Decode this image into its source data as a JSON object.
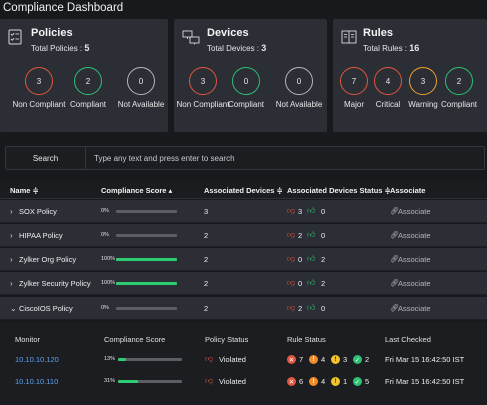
{
  "page_title": "Compliance Dashboard",
  "cards": {
    "policies": {
      "title": "Policies",
      "subtitle": "Total Policies :",
      "total": "5",
      "stats": [
        {
          "value": "3",
          "label": "Non Compliant"
        },
        {
          "value": "2",
          "label": "Compliant"
        },
        {
          "value": "0",
          "label": "Not Available"
        }
      ]
    },
    "devices": {
      "title": "Devices",
      "subtitle": "Total Devices :",
      "total": "3",
      "stats": [
        {
          "value": "3",
          "label": "Non Compliant"
        },
        {
          "value": "0",
          "label": "Compliant"
        },
        {
          "value": "0",
          "label": "Not Available"
        }
      ]
    },
    "rules": {
      "title": "Rules",
      "subtitle": "Total Rules :",
      "total": "16",
      "stats": [
        {
          "value": "7",
          "label": "Major"
        },
        {
          "value": "4",
          "label": "Critical"
        },
        {
          "value": "3",
          "label": "Warning"
        },
        {
          "value": "2",
          "label": "Compliant"
        }
      ]
    }
  },
  "search": {
    "button_label": "Search",
    "placeholder": "Type any text and press enter to search"
  },
  "table": {
    "headers": {
      "name": "Name ≑",
      "compliance_score": "Compliance Score ▴",
      "associated_devices": "Associated Devices ≑",
      "associated_devices_status": "Associated Devices Status ≑",
      "associate": "Associate"
    },
    "rows": [
      {
        "chevron": "›",
        "name": "SOX Policy",
        "score": "0%",
        "score_value": 0,
        "devices": "3",
        "down": "3",
        "up": "0",
        "associate": "Associate"
      },
      {
        "chevron": "›",
        "name": "HIPAA Policy",
        "score": "0%",
        "score_value": 0,
        "devices": "2",
        "down": "2",
        "up": "0",
        "associate": "Associate"
      },
      {
        "chevron": "›",
        "name": "Zylker Org Policy",
        "score": "100%",
        "score_value": 100,
        "devices": "2",
        "down": "0",
        "up": "2",
        "associate": "Associate"
      },
      {
        "chevron": "›",
        "name": "Zylker Security Policy",
        "score": "100%",
        "score_value": 100,
        "devices": "2",
        "down": "0",
        "up": "2",
        "associate": "Associate"
      },
      {
        "chevron": "⌄",
        "name": "CiscoIOS Policy",
        "score": "0%",
        "score_value": 0,
        "devices": "2",
        "down": "2",
        "up": "0",
        "associate": "Associate"
      }
    ]
  },
  "subtable": {
    "headers": {
      "monitor": "Monitor",
      "compliance_score": "Compliance Score",
      "policy_status": "Policy Status",
      "rule_status": "Rule Status",
      "last_checked": "Last Checked"
    },
    "rows": [
      {
        "monitor": "10.10.10.120",
        "score": "13%",
        "score_value": 13,
        "status": "Violated",
        "critical": "7",
        "major": "4",
        "warning": "3",
        "compliant": "2",
        "last_checked": "Fri Mar 15 16:42:50 IST"
      },
      {
        "monitor": "10.10.10.110",
        "score": "31%",
        "score_value": 31,
        "status": "Violated",
        "critical": "6",
        "major": "4",
        "warning": "1",
        "compliant": "5",
        "last_checked": "Fri Mar 15 16:42:50 IST"
      }
    ]
  },
  "icons": {
    "down": "down-thumb-icon",
    "up": "up-thumb-icon",
    "associate": "link-icon"
  },
  "colors": {
    "critical": "#e0563e",
    "compliant": "#2ec073",
    "warning": "#f0c22c",
    "major": "#f08c2c",
    "link": "#5aa1ef"
  }
}
